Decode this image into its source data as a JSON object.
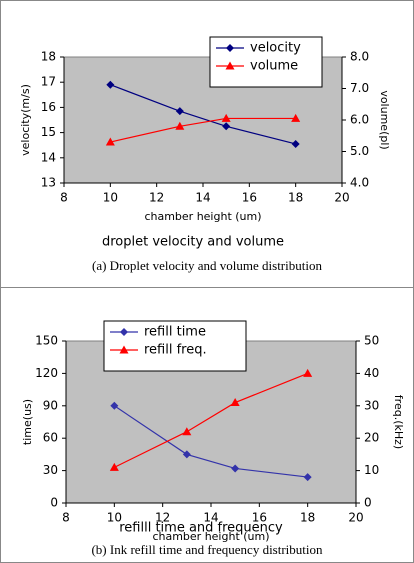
{
  "chart_data": [
    {
      "type": "line",
      "title": "droplet velocity and volume",
      "caption": "(a)  Droplet velocity and volume distribution",
      "xlabel": "chamber height (um)",
      "ylabel": "velocity(m/s)",
      "y2label": "volume(pl)",
      "x": [
        10,
        13,
        15,
        18
      ],
      "series": [
        {
          "name": "velocity",
          "color": "#000080",
          "marker": "diamond",
          "values": [
            16.9,
            15.85,
            15.25,
            14.55
          ]
        },
        {
          "name": "volume",
          "color": "#ff0000",
          "marker": "triangle",
          "axis": "y2",
          "values": [
            5.3,
            5.8,
            6.05,
            6.05
          ]
        }
      ],
      "xlim": [
        8,
        20
      ],
      "xticks": [
        8,
        10,
        12,
        14,
        16,
        18,
        20
      ],
      "ylim": [
        13,
        18
      ],
      "yticks": [
        13,
        14,
        15,
        16,
        17,
        18
      ],
      "y2lim": [
        4,
        8
      ],
      "y2ticks": [
        {
          "value": 4,
          "label": "4.0"
        },
        {
          "value": 5,
          "label": "5.0"
        },
        {
          "value": 6,
          "label": "6.0"
        },
        {
          "value": 7,
          "label": "7.0"
        },
        {
          "value": 8,
          "label": "8.0"
        }
      ],
      "legend": "upper right"
    },
    {
      "type": "line",
      "title": "refilll time and frequency",
      "caption": "(b)  Ink refill time and frequency distribution",
      "xlabel": "chamber height (um)",
      "ylabel": "time(us)",
      "y2label": "freq.(kHz)",
      "x": [
        10,
        13,
        15,
        18
      ],
      "series": [
        {
          "name": "refill time",
          "color": "#3333aa",
          "marker": "diamond",
          "values": [
            90,
            45,
            32,
            24
          ]
        },
        {
          "name": "refill freq.",
          "color": "#ff0000",
          "marker": "triangle",
          "axis": "y2",
          "values": [
            11,
            22,
            31,
            40
          ]
        }
      ],
      "xlim": [
        8,
        20
      ],
      "xticks": [
        8,
        10,
        12,
        14,
        16,
        18,
        20
      ],
      "ylim": [
        0,
        150
      ],
      "yticks": [
        0,
        30,
        60,
        90,
        120,
        150
      ],
      "y2lim": [
        0,
        50
      ],
      "y2ticks": [
        0,
        10,
        20,
        30,
        40,
        50
      ],
      "legend": "upper left"
    }
  ]
}
